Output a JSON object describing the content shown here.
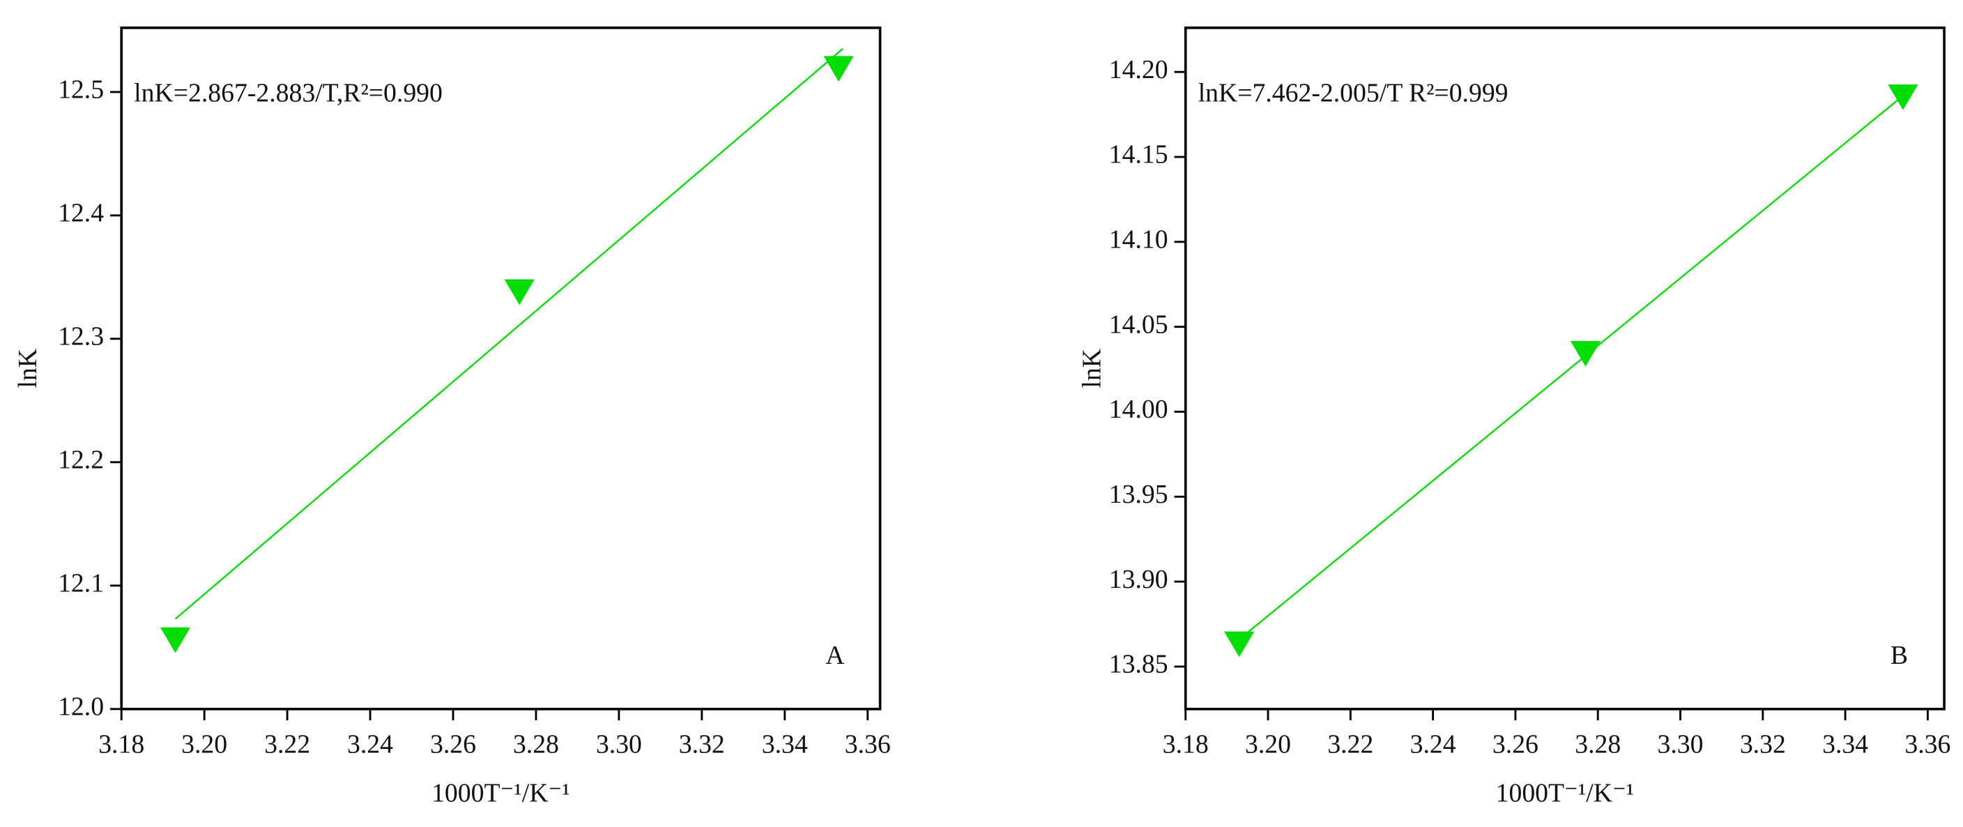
{
  "chart_data": [
    {
      "type": "scatter",
      "color": "#00dd00",
      "xlabel": "1000T⁻¹/K⁻¹",
      "ylabel": "lnK",
      "annotation": "lnK=2.867-2.883/T,R²=0.990",
      "panel_label": "A",
      "x": [
        3.193,
        3.276,
        3.353
      ],
      "values": [
        12.057,
        12.339,
        12.52
      ],
      "fit": {
        "x": [
          3.193,
          3.354
        ],
        "values": [
          12.073,
          12.535
        ]
      },
      "xlim": [
        3.18,
        3.363
      ],
      "ylim": [
        12.0,
        12.552
      ],
      "xticks": [
        3.18,
        {
          "value": 3.2,
          "label": "3.20"
        },
        3.22,
        3.24,
        3.26,
        3.28,
        {
          "value": 3.3,
          "label": "3.30"
        },
        3.32,
        3.34,
        3.36
      ],
      "yticks": [
        {
          "value": 12.0,
          "label": "12.0"
        },
        12.1,
        12.2,
        12.3,
        12.4,
        12.5
      ]
    },
    {
      "type": "scatter",
      "color": "#00dd00",
      "xlabel": "1000T⁻¹/K⁻¹",
      "ylabel": "lnK",
      "annotation": "lnK=7.462-2.005/T  R²=0.999",
      "panel_label": "B",
      "x": [
        3.193,
        3.277,
        3.354
      ],
      "values": [
        13.864,
        14.035,
        14.186
      ],
      "fit": {
        "x": [
          3.193,
          3.354
        ],
        "values": [
          13.866,
          14.186
        ]
      },
      "xlim": [
        3.18,
        3.364
      ],
      "ylim": [
        13.825,
        14.226
      ],
      "xticks": [
        3.18,
        {
          "value": 3.2,
          "label": "3.20"
        },
        3.22,
        3.24,
        3.26,
        3.28,
        {
          "value": 3.3,
          "label": "3.30"
        },
        3.32,
        3.34,
        3.36
      ],
      "yticks": [
        13.85,
        {
          "value": 13.9,
          "label": "13.90"
        },
        13.95,
        {
          "value": 14.0,
          "label": "14.00"
        },
        14.05,
        {
          "value": 14.1,
          "label": "14.10"
        },
        14.15,
        {
          "value": 14.2,
          "label": "14.20"
        }
      ]
    }
  ]
}
